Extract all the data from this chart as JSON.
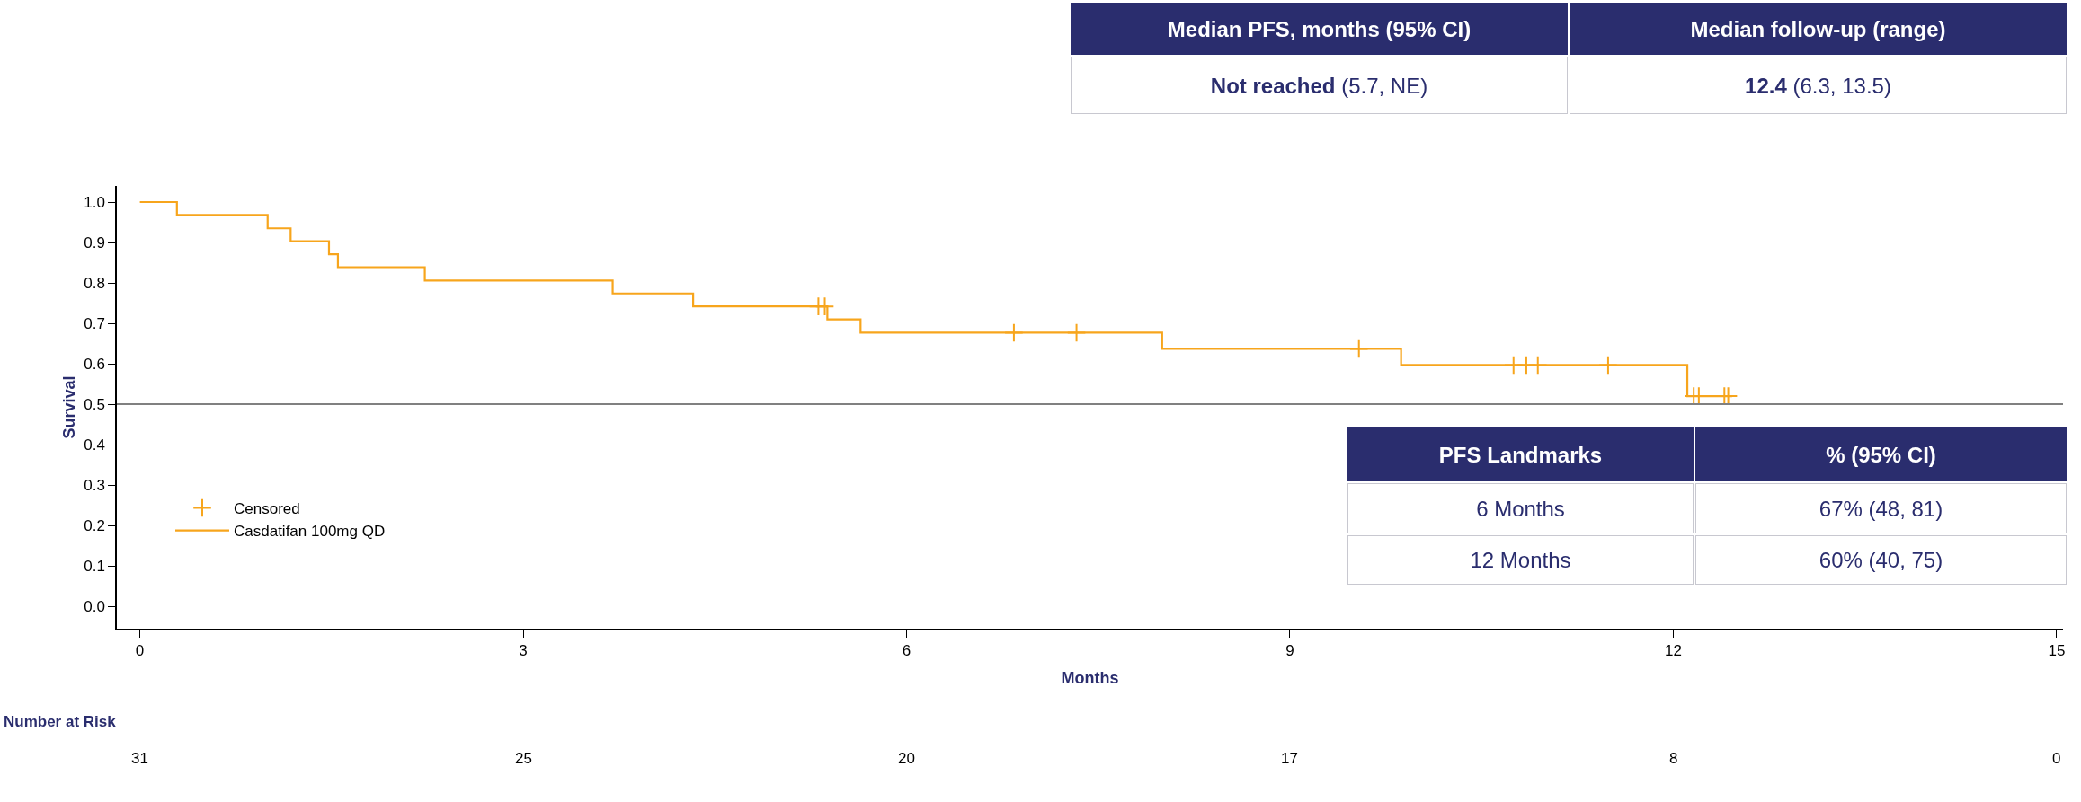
{
  "chart_data": {
    "type": "step",
    "xlabel": "Months",
    "ylabel": "Survival",
    "xlim": [
      -0.18,
      15.05
    ],
    "xticks": [
      0,
      3,
      6,
      9,
      12,
      15
    ],
    "ylim": [
      -0.055,
      1.04
    ],
    "yticks": [
      {
        "value": 0,
        "label": "0.0"
      },
      0.1,
      0.2,
      0.3,
      0.4,
      0.5,
      0.6,
      0.7,
      0.8,
      0.9,
      {
        "value": 1,
        "label": "1.0"
      }
    ],
    "legend": "bottom left",
    "series": [
      {
        "name": "Censored",
        "type": "scatter",
        "marker": "cross",
        "color": "#f7a51c",
        "x": [
          5.31,
          5.36,
          6.84,
          7.33,
          9.54,
          10.75,
          10.85,
          10.94,
          11.49,
          12.16,
          12.2,
          12.4,
          12.43
        ],
        "values": [
          0.742,
          0.742,
          0.677,
          0.677,
          0.637,
          0.597,
          0.597,
          0.597,
          0.597,
          0.52,
          0.52,
          0.52,
          0.52
        ]
      },
      {
        "name": "Casdatifan 100mg QD",
        "color": "#f7a51c",
        "x": [
          0,
          0.29,
          1.0,
          1.18,
          1.48,
          1.55,
          2.23,
          3.7,
          4.33,
          5.38,
          5.64,
          8.0,
          9.87,
          12.11,
          12.46
        ],
        "values": [
          1.0,
          0.968,
          0.935,
          0.903,
          0.871,
          0.839,
          0.806,
          0.774,
          0.742,
          0.71,
          0.677,
          0.637,
          0.597,
          0.52,
          0.52
        ]
      }
    ],
    "ref_lines": [
      {
        "axis": "y",
        "value": 0.5,
        "color": "#808080"
      }
    ],
    "annotations": [
      "Median PFS, months (95% CI)",
      "Median follow-up (range)",
      "Not reached (5.7, NE)",
      "12.4 (6.3, 13.5)",
      "PFS Landmarks",
      "% (95% CI)",
      "6 Months",
      "67% (48, 81)",
      "12 Months",
      "60% (40, 75)",
      "Number at Risk",
      "31",
      "25",
      "20",
      "17",
      "8",
      "0"
    ]
  }
}
